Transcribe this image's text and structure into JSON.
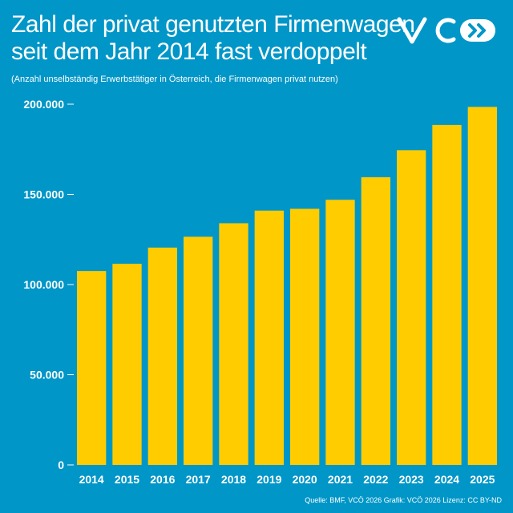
{
  "header": {
    "title_line1": "Zahl der privat genutzten Firmenwagen",
    "title_line2": "seit dem Jahr 2014 fast verdoppelt",
    "subtitle": "(Anzahl unselbständig Erwerbstätiger in Österreich, die Firmenwagen privat nutzen)",
    "logo_icon": "vcoe-logo-icon"
  },
  "footer": {
    "source": "Quelle: BMF, VCÖ 2026 Grafik: VCÖ 2026 Lizenz: CC BY-ND"
  },
  "colors": {
    "background": "#0096c8",
    "bar": "#ffcc00",
    "text": "#ffffff"
  },
  "chart_data": {
    "type": "bar",
    "title": "Zahl der privat genutzten Firmenwagen seit dem Jahr 2014 fast verdoppelt",
    "subtitle": "(Anzahl unselbständig Erwerbstätiger in Österreich, die Firmenwagen privat nutzen)",
    "xlabel": "",
    "ylabel": "",
    "categories": [
      "2014",
      "2015",
      "2016",
      "2017",
      "2018",
      "2019",
      "2020",
      "2021",
      "2022",
      "2023",
      "2024",
      "2025"
    ],
    "values": [
      107500,
      111500,
      120500,
      126500,
      134000,
      141000,
      142000,
      147000,
      159500,
      174500,
      188500,
      198500
    ],
    "ylim": [
      0,
      200000
    ],
    "yticks": [
      0,
      50000,
      100000,
      150000,
      200000
    ],
    "ytick_labels": [
      "0",
      "50.000",
      "100.000",
      "150.000",
      "200.000"
    ],
    "grid": false,
    "legend": "none"
  }
}
